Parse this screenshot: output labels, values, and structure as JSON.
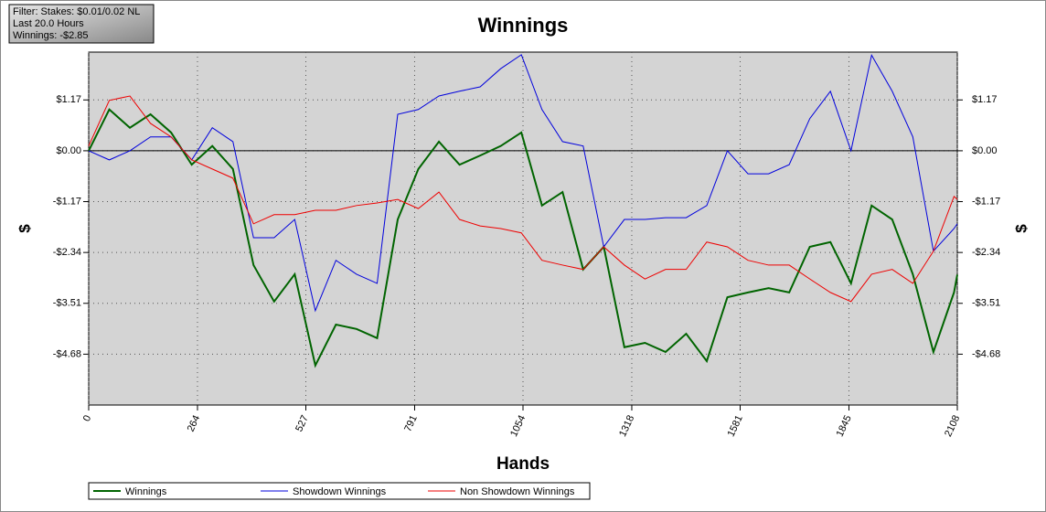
{
  "chart_data": {
    "type": "line",
    "title": "Winnings",
    "x_label": "Hands",
    "y_label": "$",
    "annotations": [
      "Filter: Stakes: $0.01/0.02 NL",
      "Last 20.0 Hours",
      "Winnings: -$2.85"
    ],
    "x": [
      0,
      50,
      100,
      150,
      200,
      250,
      300,
      350,
      400,
      450,
      500,
      550,
      600,
      650,
      700,
      750,
      800,
      850,
      900,
      950,
      1000,
      1050,
      1100,
      1150,
      1200,
      1250,
      1300,
      1350,
      1400,
      1450,
      1500,
      1550,
      1600,
      1650,
      1700,
      1750,
      1800,
      1850,
      1900,
      1950,
      2000,
      2050,
      2100,
      2108
    ],
    "series": [
      {
        "name": "Winnings",
        "color": "#006400",
        "values": [
          0,
          0.95,
          0.53,
          0.84,
          0.42,
          -0.32,
          0.11,
          -0.42,
          -2.63,
          -3.47,
          -2.84,
          -4.94,
          -4.0,
          -4.1,
          -4.31,
          -1.58,
          -0.42,
          0.21,
          -0.32,
          -0.11,
          0.11,
          0.42,
          -1.26,
          -0.95,
          -2.73,
          -2.21,
          -4.52,
          -4.42,
          -4.63,
          -4.21,
          -4.84,
          -3.37,
          -3.26,
          -3.16,
          -3.26,
          -2.21,
          -2.1,
          -3.05,
          -1.26,
          -1.58,
          -2.84,
          -4.63,
          -3.26,
          -2.85
        ]
      },
      {
        "name": "Showdown Winnings",
        "color": "#0000dd",
        "values": [
          0,
          -0.21,
          0,
          0.32,
          0.32,
          -0.21,
          0.53,
          0.21,
          -2.0,
          -2.0,
          -1.58,
          -3.68,
          -2.52,
          -2.84,
          -3.05,
          0.84,
          0.95,
          1.26,
          1.37,
          1.47,
          1.89,
          2.21,
          0.95,
          0.21,
          0.11,
          -2.21,
          -1.58,
          -1.58,
          -1.54,
          -1.54,
          -1.26,
          0,
          -0.53,
          -0.53,
          -0.32,
          0.74,
          1.37,
          0,
          2.2,
          1.37,
          0.32,
          -2.31,
          -1.79,
          -1.68
        ]
      },
      {
        "name": "Non Showdown Winnings",
        "color": "#ee0000",
        "values": [
          0.11,
          1.16,
          1.26,
          0.63,
          0.32,
          -0.21,
          -0.42,
          -0.63,
          -1.68,
          -1.47,
          -1.47,
          -1.37,
          -1.37,
          -1.26,
          -1.2,
          -1.12,
          -1.33,
          -0.95,
          -1.58,
          -1.73,
          -1.79,
          -1.89,
          -2.52,
          -2.63,
          -2.73,
          -2.21,
          -2.63,
          -2.95,
          -2.73,
          -2.73,
          -2.1,
          -2.21,
          -2.52,
          -2.63,
          -2.63,
          -2.95,
          -3.26,
          -3.47,
          -2.84,
          -2.73,
          -3.05,
          -2.31,
          -1.05,
          -1.12
        ]
      }
    ],
    "xlim": [
      0,
      2108
    ],
    "xticks": [
      0,
      264,
      527,
      791,
      1054,
      1318,
      1581,
      1845,
      2108
    ],
    "ylim": [
      -5.85,
      2.27
    ],
    "yticks": [
      {
        "value": 1.17,
        "label": "$1.17"
      },
      {
        "value": 0,
        "label": "$0.00"
      },
      {
        "value": -1.17,
        "label": "-$1.17"
      },
      {
        "value": -2.34,
        "label": "-$2.34"
      },
      {
        "value": -3.51,
        "label": "-$3.51"
      },
      {
        "value": -4.68,
        "label": "-$4.68"
      }
    ],
    "grid": true,
    "zero_line": true
  }
}
